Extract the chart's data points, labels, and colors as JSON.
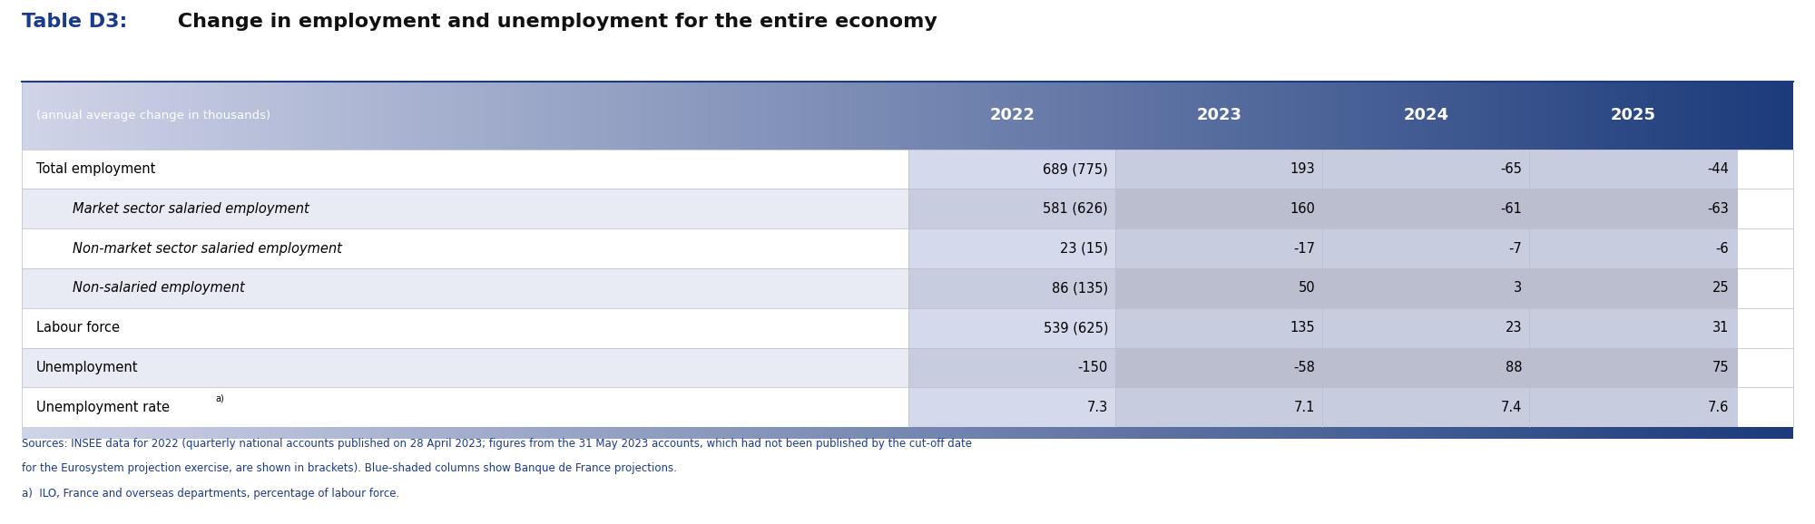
{
  "title_bold": "Table D3:",
  "title_normal": " Change in employment and unemployment for the entire economy",
  "subtitle": "(annual average change in thousands)",
  "columns": [
    "2022",
    "2023",
    "2024",
    "2025"
  ],
  "rows": [
    {
      "label": "Total employment",
      "indent": false,
      "italic": false,
      "values": [
        "689 (775)",
        "193",
        "-65",
        "-44"
      ]
    },
    {
      "label": "Market sector salaried employment",
      "indent": true,
      "italic": true,
      "values": [
        "581 (626)",
        "160",
        "-61",
        "-63"
      ]
    },
    {
      "label": "Non-market sector salaried employment",
      "indent": true,
      "italic": true,
      "values": [
        "23 (15)",
        "-17",
        "-7",
        "-6"
      ]
    },
    {
      "label": "Non-salaried employment",
      "indent": true,
      "italic": true,
      "values": [
        "86 (135)",
        "50",
        "3",
        "25"
      ]
    },
    {
      "label": "Labour force",
      "indent": false,
      "italic": false,
      "values": [
        "539 (625)",
        "135",
        "23",
        "31"
      ]
    },
    {
      "label": "Unemployment",
      "indent": false,
      "italic": false,
      "values": [
        "-150",
        "-58",
        "88",
        "75"
      ]
    },
    {
      "label": "Unemployment rate",
      "indent": false,
      "italic": false,
      "superscript": "a)",
      "values": [
        "7.3",
        "7.1",
        "7.4",
        "7.6"
      ]
    }
  ],
  "footnote_lines": [
    "Sources: INSEE data for 2022 (quarterly national accounts published on 28 April 2023; figures from the 31 May 2023 accounts, which had not been published by the cut-off date",
    "for the Eurosystem projection exercise, are shown in brackets). Blue-shaded columns show Banque de France projections.",
    "a)  ILO, France and overseas departments, percentage of labour force."
  ],
  "title_blue": "#1B3A8A",
  "header_text_color": "#FFFFFF",
  "row_bg_odd": "#FFFFFF",
  "row_bg_even": "#E8EAF4",
  "col_2022_bg_odd": "#D5D9EC",
  "col_2022_bg_even": "#C8CCDF",
  "col_rest_bg_odd": "#C8CCDF",
  "col_rest_bg_even": "#BABECE",
  "footnote_color": "#1B3A8A",
  "border_color": "#1B3A8A",
  "table_text_color": "#000000",
  "header_light_color": "#D0D4E8",
  "header_dark_color": "#1B3A7A"
}
